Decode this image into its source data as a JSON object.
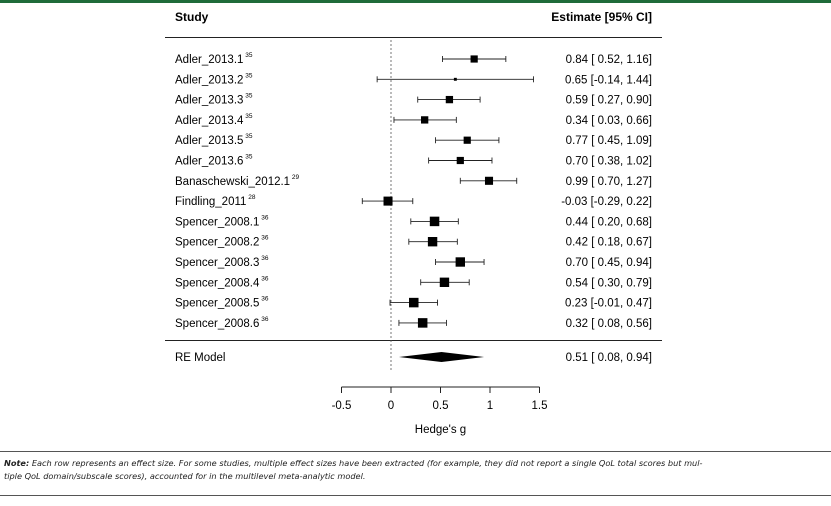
{
  "chart_data": {
    "type": "forest",
    "header_study": "Study",
    "header_estimate": "Estimate [95% CI]",
    "rows": [
      {
        "study": "Adler_2013.1",
        "ref": "35",
        "est": 0.84,
        "lo": 0.52,
        "hi": 1.16,
        "label": "0.84 [ 0.52, 1.16]"
      },
      {
        "study": "Adler_2013.2",
        "ref": "35",
        "est": 0.65,
        "lo": -0.14,
        "hi": 1.44,
        "label": "0.65 [-0.14, 1.44]"
      },
      {
        "study": "Adler_2013.3",
        "ref": "35",
        "est": 0.59,
        "lo": 0.27,
        "hi": 0.9,
        "label": "0.59 [ 0.27, 0.90]"
      },
      {
        "study": "Adler_2013.4",
        "ref": "35",
        "est": 0.34,
        "lo": 0.03,
        "hi": 0.66,
        "label": "0.34 [ 0.03, 0.66]"
      },
      {
        "study": "Adler_2013.5",
        "ref": "35",
        "est": 0.77,
        "lo": 0.45,
        "hi": 1.09,
        "label": "0.77 [ 0.45, 1.09]"
      },
      {
        "study": "Adler_2013.6",
        "ref": "35",
        "est": 0.7,
        "lo": 0.38,
        "hi": 1.02,
        "label": "0.70 [ 0.38, 1.02]"
      },
      {
        "study": "Banaschewski_2012.1",
        "ref": "29",
        "est": 0.99,
        "lo": 0.7,
        "hi": 1.27,
        "label": "0.99 [ 0.70, 1.27]"
      },
      {
        "study": "Findling_2011",
        "ref": "28",
        "est": -0.03,
        "lo": -0.29,
        "hi": 0.22,
        "label": "-0.03 [-0.29, 0.22]"
      },
      {
        "study": "Spencer_2008.1",
        "ref": "36",
        "est": 0.44,
        "lo": 0.2,
        "hi": 0.68,
        "label": "0.44 [ 0.20, 0.68]"
      },
      {
        "study": "Spencer_2008.2",
        "ref": "36",
        "est": 0.42,
        "lo": 0.18,
        "hi": 0.67,
        "label": "0.42 [ 0.18, 0.67]"
      },
      {
        "study": "Spencer_2008.3",
        "ref": "36",
        "est": 0.7,
        "lo": 0.45,
        "hi": 0.94,
        "label": "0.70 [ 0.45, 0.94]"
      },
      {
        "study": "Spencer_2008.4",
        "ref": "36",
        "est": 0.54,
        "lo": 0.3,
        "hi": 0.79,
        "label": "0.54 [ 0.30, 0.79]"
      },
      {
        "study": "Spencer_2008.5",
        "ref": "36",
        "est": 0.23,
        "lo": -0.01,
        "hi": 0.47,
        "label": "0.23 [-0.01, 0.47]"
      },
      {
        "study": "Spencer_2008.6",
        "ref": "36",
        "est": 0.32,
        "lo": 0.08,
        "hi": 0.56,
        "label": "0.32 [ 0.08, 0.56]"
      }
    ],
    "summary": {
      "study": "RE Model",
      "est": 0.51,
      "lo": 0.08,
      "hi": 0.94,
      "label": "0.51 [ 0.08, 0.94]"
    },
    "xticks": [
      -0.5,
      0,
      0.5,
      1,
      1.5
    ],
    "xtick_labels": [
      "-0.5",
      "0",
      "0.5",
      "1",
      "1.5"
    ],
    "xlim": [
      -0.5,
      1.5
    ],
    "xlabel": "Hedge's g",
    "reference_line": 0
  },
  "note": {
    "label": "Note:",
    "text": "Each row represents an effect size. For some studies, multiple effect sizes have been extracted (for example, they did not report a single QoL total scores but mul-",
    "text2": "tiple QoL domain/subscale scores), accounted for in the multilevel meta-analytic model."
  }
}
